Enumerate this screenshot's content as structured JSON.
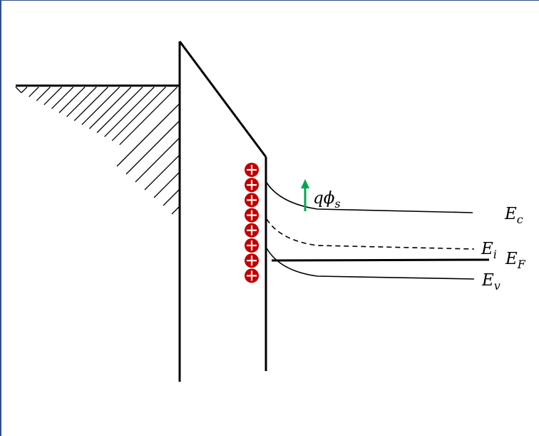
{
  "labels": {
    "surface_potential": {
      "main": "qϕ",
      "sub": "s"
    },
    "conduction_band": {
      "main": "E",
      "sub": "c"
    },
    "intrinsic_level": {
      "main": "E",
      "sub": "i"
    },
    "fermi_level": {
      "main": "E",
      "sub": "F"
    },
    "valence_band": {
      "main": "E",
      "sub": "v"
    }
  },
  "charges": {
    "symbol": "+",
    "count": 8,
    "color": "#c00000"
  },
  "colors": {
    "line": "#000000",
    "arrow": "#00a651",
    "frame": "#2f4f8a"
  }
}
